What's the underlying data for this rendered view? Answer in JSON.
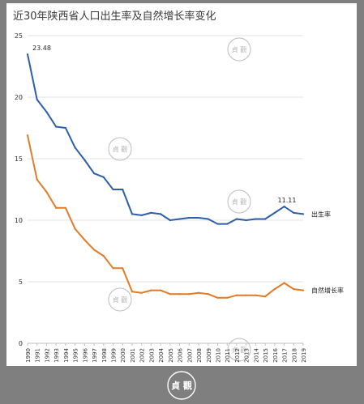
{
  "colors": {
    "birth_rate": "#2e5ea8",
    "natural_growth_rate": "#e07b27",
    "background": "#7f7f7f",
    "gridline": "#e3e3e3"
  },
  "watermark": {
    "text": "貞 觀"
  },
  "chart_data": {
    "type": "line",
    "title": "近30年陕西省人口出生率及自然增长率变化",
    "xlabel": "",
    "ylabel": "",
    "ylim": [
      0,
      25
    ],
    "yticks": [
      0,
      5,
      10,
      15,
      20,
      25
    ],
    "grid": true,
    "legend": "inline-right",
    "x": [
      "1990",
      "1991",
      "1992",
      "1993",
      "1994",
      "1995",
      "1996",
      "1997",
      "1998",
      "1999",
      "2000",
      "2001",
      "2002",
      "2003",
      "2004",
      "2005",
      "2006",
      "2007",
      "2008",
      "2009",
      "2010",
      "2011",
      "2012",
      "2013",
      "2014",
      "2015",
      "2016",
      "2017",
      "2018",
      "2019"
    ],
    "series": [
      {
        "name": "出生率",
        "color": "#2e5ea8",
        "values": [
          23.48,
          19.8,
          18.8,
          17.6,
          17.5,
          15.9,
          14.9,
          13.8,
          13.5,
          12.5,
          12.5,
          10.5,
          10.4,
          10.6,
          10.5,
          10.0,
          10.1,
          10.2,
          10.2,
          10.1,
          9.7,
          9.7,
          10.1,
          10.0,
          10.1,
          10.1,
          10.6,
          11.11,
          10.6,
          10.5
        ]
      },
      {
        "name": "自然增长率",
        "color": "#e07b27",
        "values": [
          16.9,
          13.3,
          12.3,
          11.0,
          11.0,
          9.3,
          8.4,
          7.6,
          7.1,
          6.1,
          6.1,
          4.2,
          4.1,
          4.3,
          4.3,
          4.0,
          4.0,
          4.0,
          4.1,
          4.0,
          3.7,
          3.7,
          3.9,
          3.9,
          3.9,
          3.8,
          4.4,
          4.9,
          4.4,
          4.3
        ]
      }
    ],
    "annotations": [
      {
        "series": 0,
        "x": "1990",
        "text": "23.48"
      },
      {
        "series": 0,
        "x": "2017",
        "text": "11.11"
      }
    ]
  }
}
